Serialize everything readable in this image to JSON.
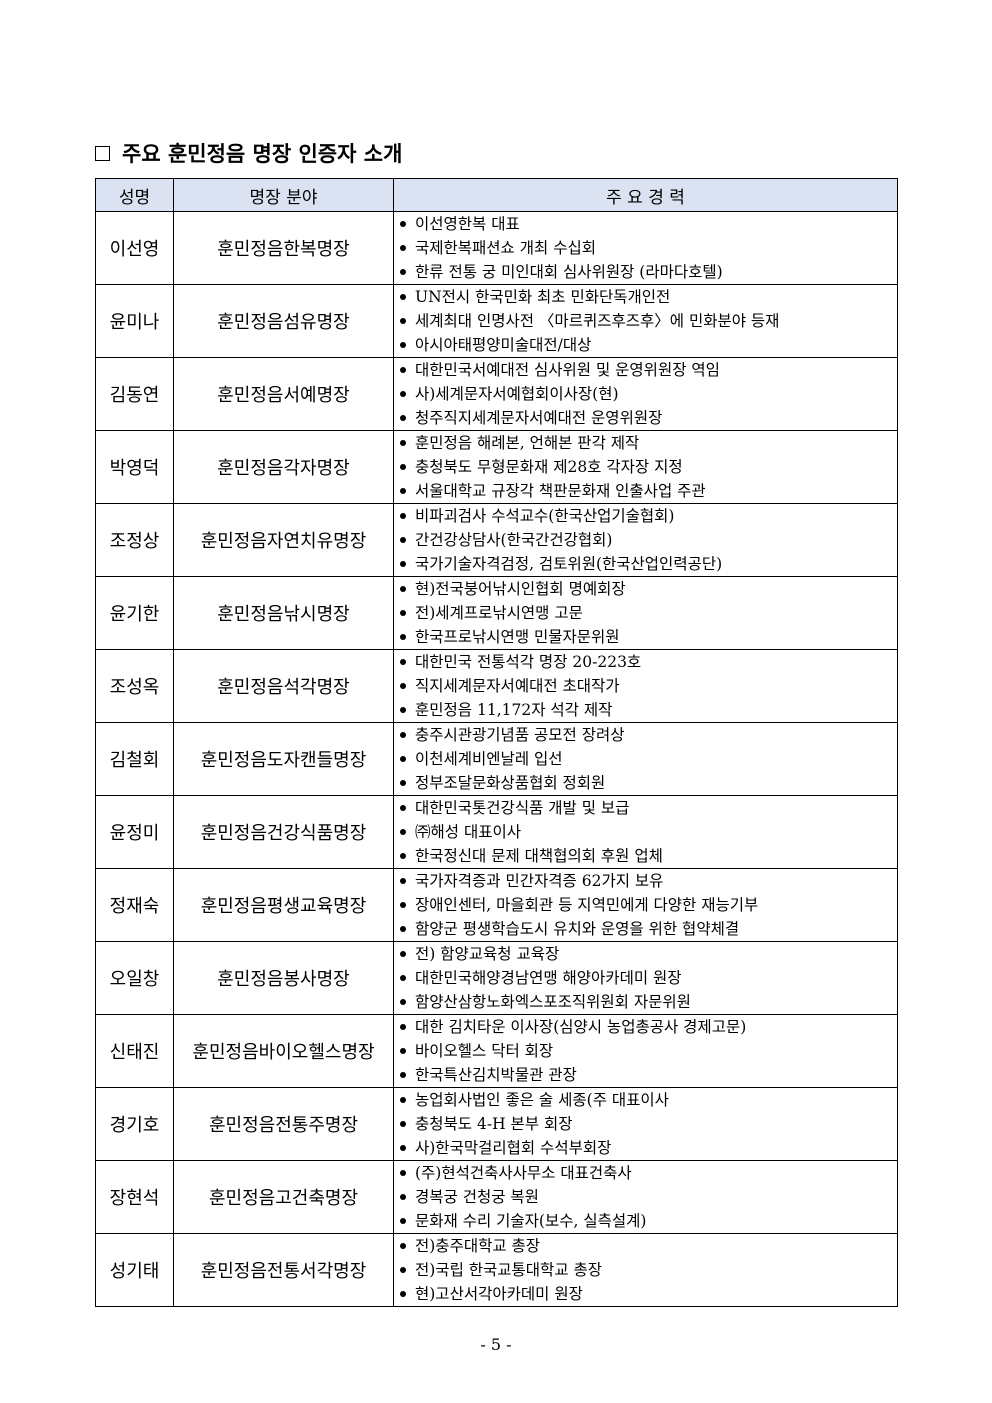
{
  "title": "주요 훈민정음 명장 인증자 소개",
  "table": {
    "headers": [
      "성명",
      "명장 분야",
      "주 요 경 력"
    ],
    "rows": [
      {
        "name": "이선영",
        "field": "훈민정음한복명장",
        "items": [
          "이선영한복 대표",
          "국제한복패션쇼 개최 수십회",
          "한류 전통 궁 미인대회 심사위원장 (라마다호텔)"
        ]
      },
      {
        "name": "윤미나",
        "field": "훈민정음섬유명장",
        "items": [
          "UN전시 한국민화 최초 민화단독개인전",
          "세계최대 인명사전 〈마르퀴즈후즈후〉에 민화분야 등재",
          "아시아태평양미술대전/대상"
        ]
      },
      {
        "name": "김동연",
        "field": "훈민정음서예명장",
        "items": [
          "대한민국서예대전 심사위원 및 운영위원장 역임",
          "사)세계문자서예협회이사장(현)",
          "청주직지세계문자서예대전 운영위원장"
        ]
      },
      {
        "name": "박영덕",
        "field": "훈민정음각자명장",
        "items": [
          "훈민정음 해례본, 언해본 판각 제작",
          "충청북도 무형문화재 제28호 각자장 지정",
          "서울대학교 규장각 책판문화재 인출사업 주관"
        ]
      },
      {
        "name": "조정상",
        "field": "훈민정음자연치유명장",
        "items": [
          "비파괴검사 수석교수(한국산업기술협회)",
          "간건강상담사(한국간건강협회)",
          "국가기술자격검정, 검토위원(한국산업인력공단)"
        ]
      },
      {
        "name": "윤기한",
        "field": "훈민정음낚시명장",
        "items": [
          "현)전국붕어낚시인협회 명예회장",
          "전)세계프로낚시연맹 고문",
          "한국프로낚시연맹 민물자문위원"
        ]
      },
      {
        "name": "조성옥",
        "field": "훈민정음석각명장",
        "items": [
          "대한민국 전통석각 명장 20-223호",
          "직지세계문자서예대전 초대작가",
          "훈민정음 11,172자 석각 제작"
        ]
      },
      {
        "name": "김철회",
        "field": "훈민정음도자캔들명장",
        "items": [
          "충주시관광기념품 공모전 장려상",
          "이천세계비엔날레 입선",
          "정부조달문화상품협회 정회원"
        ]
      },
      {
        "name": "윤정미",
        "field": "훈민정음건강식품명장",
        "items": [
          "대한민국톳건강식품 개발 및 보급",
          "㈜해성 대표이사",
          "한국정신대 문제 대책협의회 후원 업체"
        ]
      },
      {
        "name": "정재숙",
        "field": "훈민정음평생교육명장",
        "items": [
          "국가자격증과 민간자격증 62가지 보유",
          "장애인센터, 마을회관 등 지역민에게 다양한 재능기부",
          "함양군 평생학습도시 유치와 운영을 위한 협약체결"
        ]
      },
      {
        "name": "오일창",
        "field": "훈민정음봉사명장",
        "items": [
          "전) 함양교육청 교육장",
          "대한민국해양경남연맹 해양아카데미 원장",
          "함양산삼항노화엑스포조직위원회 자문위원"
        ]
      },
      {
        "name": "신태진",
        "field": "훈민정음바이오헬스명장",
        "items": [
          "대한 김치타운 이사장(심양시 농업총공사 경제고문)",
          "바이오헬스 닥터 회장",
          "한국특산김치박물관 관장"
        ]
      },
      {
        "name": "경기호",
        "field": "훈민정음전통주명장",
        "items": [
          "농업회사법인 좋은 술 세종(주 대표이사",
          "충청북도 4-H 본부 회장",
          "사)한국막걸리협회 수석부회장"
        ]
      },
      {
        "name": "장현석",
        "field": "훈민정음고건축명장",
        "items": [
          "(주)현석건축사사무소 대표건축사",
          "경복궁 건청궁 복원",
          "문화재 수리 기술자(보수, 실측설계)"
        ]
      },
      {
        "name": "성기태",
        "field": "훈민정음전통서각명장",
        "items": [
          "전)충주대학교 총장",
          "전)국립 한국교통대학교 총장",
          "현)고산서각아카데미 원장"
        ]
      }
    ]
  },
  "page_number": "- 5 -"
}
